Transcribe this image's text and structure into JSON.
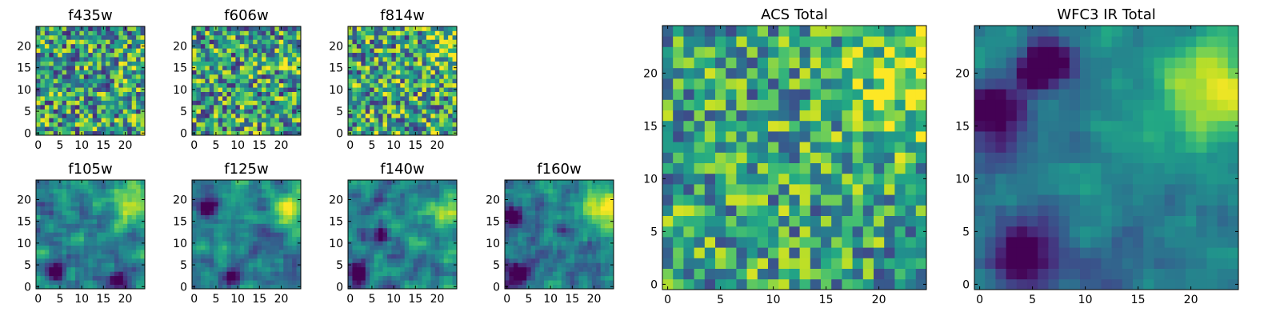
{
  "chart_data": [
    {
      "type": "heatmap",
      "title": "f435w",
      "grid_size": 25,
      "colormap": "viridis",
      "seed": 1,
      "hotspot": [
        21,
        16,
        2.5,
        0.15
      ],
      "smooth": 0,
      "noise": 0.55,
      "bias": 0.55,
      "dark_spots": [],
      "xticks": [
        0,
        5,
        10,
        15,
        20
      ],
      "yticks": [
        0,
        5,
        10,
        15,
        20
      ]
    },
    {
      "type": "heatmap",
      "title": "f606w",
      "grid_size": 25,
      "colormap": "viridis",
      "seed": 2,
      "hotspot": [
        23,
        17,
        2.5,
        0.3
      ],
      "smooth": 0,
      "noise": 0.55,
      "bias": 0.55,
      "dark_spots": [],
      "xticks": [
        0,
        5,
        10,
        15,
        20
      ],
      "yticks": [
        0,
        5,
        10,
        15,
        20
      ]
    },
    {
      "type": "heatmap",
      "title": "f814w",
      "grid_size": 25,
      "colormap": "viridis",
      "seed": 3,
      "hotspot": [
        23,
        20,
        3,
        0.35
      ],
      "smooth": 0,
      "noise": 0.55,
      "bias": 0.58,
      "dark_spots": [],
      "xticks": [
        0,
        5,
        10,
        15,
        20
      ],
      "yticks": [
        0,
        5,
        10,
        15,
        20
      ]
    },
    {
      "type": "heatmap",
      "title": "f105w",
      "grid_size": 25,
      "colormap": "viridis",
      "seed": 4,
      "hotspot": [
        22,
        19,
        3,
        0.55
      ],
      "smooth": 1,
      "noise": 0.35,
      "bias": 0.45,
      "dark_spots": [
        [
          4,
          3,
          1.5
        ],
        [
          18,
          2,
          1.5
        ]
      ],
      "xticks": [
        0,
        5,
        10,
        15,
        20
      ],
      "yticks": [
        0,
        5,
        10,
        15,
        20
      ]
    },
    {
      "type": "heatmap",
      "title": "f125w",
      "grid_size": 25,
      "colormap": "viridis",
      "seed": 5,
      "hotspot": [
        22,
        18,
        3,
        0.55
      ],
      "smooth": 1,
      "noise": 0.35,
      "bias": 0.45,
      "dark_spots": [
        [
          3,
          18,
          1.5
        ],
        [
          9,
          2,
          1.5
        ]
      ],
      "xticks": [
        0,
        5,
        10,
        15,
        20
      ],
      "yticks": [
        0,
        5,
        10,
        15,
        20
      ]
    },
    {
      "type": "heatmap",
      "title": "f140w",
      "grid_size": 25,
      "colormap": "viridis",
      "seed": 6,
      "hotspot": [
        22,
        17,
        3,
        0.55
      ],
      "smooth": 1,
      "noise": 0.35,
      "bias": 0.42,
      "dark_spots": [
        [
          2,
          3,
          1.5
        ],
        [
          7,
          12,
          1.2
        ]
      ],
      "xticks": [
        0,
        5,
        10,
        15,
        20
      ],
      "yticks": [
        0,
        5,
        10,
        15,
        20
      ]
    },
    {
      "type": "heatmap",
      "title": "f160w",
      "grid_size": 25,
      "colormap": "viridis",
      "seed": 7,
      "hotspot": [
        22,
        18,
        3.5,
        0.6
      ],
      "smooth": 1,
      "noise": 0.35,
      "bias": 0.38,
      "dark_spots": [
        [
          2,
          16,
          2
        ],
        [
          3,
          3,
          2
        ]
      ],
      "xticks": [
        0,
        5,
        10,
        15,
        20
      ],
      "yticks": [
        0,
        5,
        10,
        15,
        20
      ]
    },
    {
      "type": "heatmap",
      "title": "ACS Total",
      "grid_size": 25,
      "colormap": "viridis",
      "seed": 11,
      "hotspot": [
        23,
        19,
        3.5,
        0.35
      ],
      "smooth": 0,
      "noise": 0.45,
      "bias": 0.58,
      "dark_spots": [],
      "xticks": [
        0,
        5,
        10,
        15,
        20
      ],
      "yticks": [
        0,
        5,
        10,
        15,
        20
      ]
    },
    {
      "type": "heatmap",
      "title": "WFC3 IR Total",
      "grid_size": 25,
      "colormap": "viridis",
      "seed": 12,
      "hotspot": [
        22,
        18,
        3.5,
        0.55
      ],
      "smooth": 1,
      "noise": 0.22,
      "bias": 0.42,
      "dark_spots": [
        [
          1,
          16,
          2.2
        ],
        [
          4,
          3,
          2.2
        ],
        [
          7,
          21,
          1.5
        ],
        [
          5,
          20,
          1.2
        ]
      ],
      "xticks": [
        0,
        5,
        10,
        15,
        20
      ],
      "yticks": [
        0,
        5,
        10,
        15,
        20
      ]
    }
  ]
}
